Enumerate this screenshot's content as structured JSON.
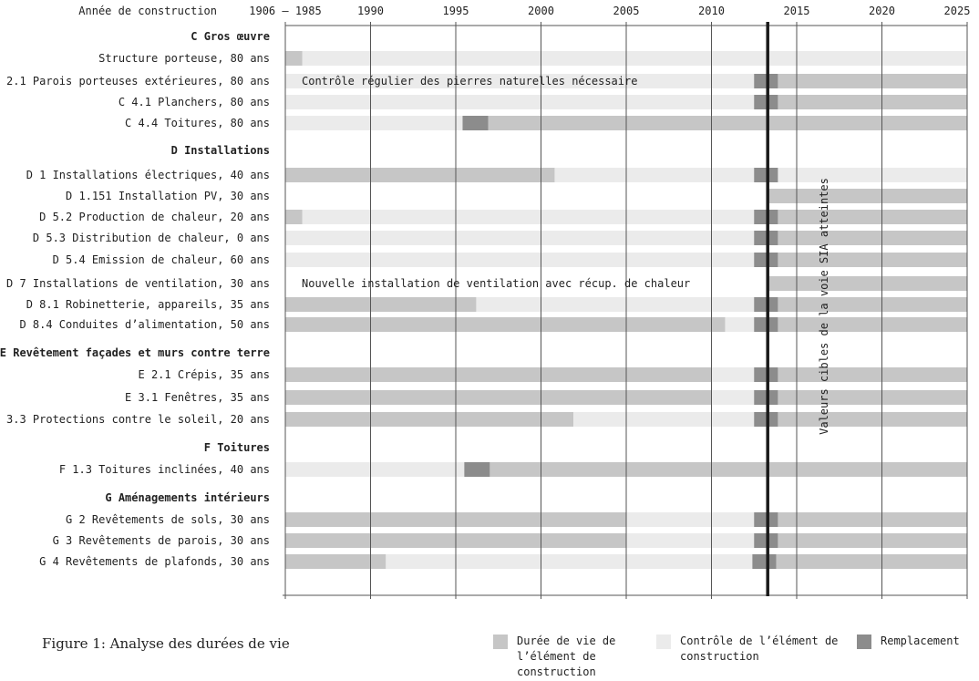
{
  "colors": {
    "lifetime": "#c6c6c6",
    "control": "#ebebeb",
    "replacement": "#8c8c8c",
    "grid": "#555555",
    "marker": "#1a1a1a"
  },
  "figure_caption": "Figure 1: Analyse des durées de vie",
  "legend": [
    {
      "label": "Durée de vie de l’élément de construction",
      "color_key": "lifetime"
    },
    {
      "label": "Contrôle de l’élément de construction",
      "color_key": "control"
    },
    {
      "label": "Remplacement",
      "color_key": "replacement"
    }
  ],
  "chart_data": {
    "type": "gantt",
    "x_header": "Année de construction",
    "xlim": [
      1985,
      2025
    ],
    "x_ticks": [
      {
        "value": 1985,
        "label": "1906 – 1985"
      },
      {
        "value": 1990,
        "label": "1990"
      },
      {
        "value": 1995,
        "label": "1995"
      },
      {
        "value": 2000,
        "label": "2000"
      },
      {
        "value": 2005,
        "label": "2005"
      },
      {
        "value": 2010,
        "label": "2010"
      },
      {
        "value": 2015,
        "label": "2015"
      },
      {
        "value": 2020,
        "label": "2020"
      },
      {
        "value": 2025,
        "label": "2025"
      }
    ],
    "reference_line": {
      "x": 2013.3,
      "label": "Valeurs cibles de la voie SIA atteintes"
    },
    "rows": [
      {
        "kind": "section",
        "label": "C Gros œuvre"
      },
      {
        "kind": "item",
        "label": "Structure porteuse, 80 ans",
        "segments": [
          {
            "type": "lifetime",
            "start": 1985,
            "end": 1986.0
          },
          {
            "type": "control",
            "start": 1986.0,
            "end": 2025
          }
        ]
      },
      {
        "kind": "item",
        "label": "C 2.1 Parois porteuses extérieures, 80 ans",
        "annotation": "Contrôle régulier des pierres naturelles nécessaire",
        "segments": [
          {
            "type": "control",
            "start": 1985,
            "end": 2012.5
          },
          {
            "type": "replacement",
            "start": 2012.5,
            "end": 2013.9
          },
          {
            "type": "lifetime",
            "start": 2013.9,
            "end": 2025
          }
        ]
      },
      {
        "kind": "item",
        "label": "C 4.1 Planchers, 80 ans",
        "segments": [
          {
            "type": "control",
            "start": 1985,
            "end": 2012.5
          },
          {
            "type": "replacement",
            "start": 2012.5,
            "end": 2013.9
          },
          {
            "type": "lifetime",
            "start": 2013.9,
            "end": 2025
          }
        ]
      },
      {
        "kind": "item",
        "label": "C 4.4 Toitures, 80 ans",
        "segments": [
          {
            "type": "control",
            "start": 1985,
            "end": 1995.4
          },
          {
            "type": "replacement",
            "start": 1995.4,
            "end": 1996.9
          },
          {
            "type": "lifetime",
            "start": 1996.9,
            "end": 2025
          }
        ]
      },
      {
        "kind": "section",
        "label": "D Installations"
      },
      {
        "kind": "item",
        "label": "D 1 Installations électriques, 40 ans",
        "segments": [
          {
            "type": "lifetime",
            "start": 1985,
            "end": 2000.8
          },
          {
            "type": "control",
            "start": 2000.8,
            "end": 2012.5
          },
          {
            "type": "replacement",
            "start": 2012.5,
            "end": 2013.9
          },
          {
            "type": "control",
            "start": 2013.9,
            "end": 2025
          }
        ]
      },
      {
        "kind": "item",
        "label": "D 1.151 Installation PV, 30 ans",
        "segments": [
          {
            "type": "lifetime",
            "start": 2013.3,
            "end": 2025
          }
        ]
      },
      {
        "kind": "item",
        "label": "D 5.2 Production de chaleur, 20 ans",
        "segments": [
          {
            "type": "lifetime",
            "start": 1985,
            "end": 1986.0
          },
          {
            "type": "control",
            "start": 1986.0,
            "end": 2012.5
          },
          {
            "type": "replacement",
            "start": 2012.5,
            "end": 2013.9
          },
          {
            "type": "lifetime",
            "start": 2013.9,
            "end": 2025
          }
        ]
      },
      {
        "kind": "item",
        "label": "D 5.3 Distribution de chaleur, 0 ans",
        "segments": [
          {
            "type": "control",
            "start": 1985,
            "end": 2012.5
          },
          {
            "type": "replacement",
            "start": 2012.5,
            "end": 2013.9
          },
          {
            "type": "lifetime",
            "start": 2013.9,
            "end": 2025
          }
        ]
      },
      {
        "kind": "item",
        "label": "D 5.4 Emission de chaleur, 60 ans",
        "segments": [
          {
            "type": "control",
            "start": 1985,
            "end": 2012.5
          },
          {
            "type": "replacement",
            "start": 2012.5,
            "end": 2013.9
          },
          {
            "type": "lifetime",
            "start": 2013.9,
            "end": 2025
          }
        ]
      },
      {
        "kind": "item",
        "label": "D 7 Installations de ventilation, 30 ans",
        "annotation": "Nouvelle installation de ventilation avec récup. de chaleur",
        "segments": [
          {
            "type": "lifetime",
            "start": 2013.3,
            "end": 2025
          }
        ]
      },
      {
        "kind": "item",
        "label": "D 8.1 Robinetterie, appareils, 35 ans",
        "segments": [
          {
            "type": "lifetime",
            "start": 1985,
            "end": 1996.2
          },
          {
            "type": "control",
            "start": 1996.2,
            "end": 2012.5
          },
          {
            "type": "replacement",
            "start": 2012.5,
            "end": 2013.9
          },
          {
            "type": "lifetime",
            "start": 2013.9,
            "end": 2025
          }
        ]
      },
      {
        "kind": "item",
        "label": "D 8.4 Conduites d’alimentation, 50 ans",
        "segments": [
          {
            "type": "lifetime",
            "start": 1985,
            "end": 2010.8
          },
          {
            "type": "control",
            "start": 2010.8,
            "end": 2012.5
          },
          {
            "type": "replacement",
            "start": 2012.5,
            "end": 2013.9
          },
          {
            "type": "lifetime",
            "start": 2013.9,
            "end": 2025
          }
        ]
      },
      {
        "kind": "section",
        "label": "E Revêtement façades et murs contre terre"
      },
      {
        "kind": "item",
        "label": "E 2.1 Crépis, 35 ans",
        "segments": [
          {
            "type": "lifetime",
            "start": 1985,
            "end": 2010.0
          },
          {
            "type": "control",
            "start": 2010.0,
            "end": 2012.5
          },
          {
            "type": "replacement",
            "start": 2012.5,
            "end": 2013.9
          },
          {
            "type": "lifetime",
            "start": 2013.9,
            "end": 2025
          }
        ]
      },
      {
        "kind": "item",
        "label": "E 3.1 Fenêtres, 35 ans",
        "segments": [
          {
            "type": "lifetime",
            "start": 1985,
            "end": 2010.0
          },
          {
            "type": "control",
            "start": 2010.0,
            "end": 2012.5
          },
          {
            "type": "replacement",
            "start": 2012.5,
            "end": 2013.9
          },
          {
            "type": "lifetime",
            "start": 2013.9,
            "end": 2025
          }
        ]
      },
      {
        "kind": "item",
        "label": "E 3.3 Protections contre le soleil, 20 ans",
        "segments": [
          {
            "type": "lifetime",
            "start": 1985,
            "end": 2001.9
          },
          {
            "type": "control",
            "start": 2001.9,
            "end": 2012.5
          },
          {
            "type": "replacement",
            "start": 2012.5,
            "end": 2013.9
          },
          {
            "type": "lifetime",
            "start": 2013.9,
            "end": 2025
          }
        ]
      },
      {
        "kind": "section",
        "label": "F Toitures"
      },
      {
        "kind": "item",
        "label": "F 1.3 Toitures inclinées, 40 ans",
        "segments": [
          {
            "type": "control",
            "start": 1985,
            "end": 1995.5
          },
          {
            "type": "replacement",
            "start": 1995.5,
            "end": 1997.0
          },
          {
            "type": "lifetime",
            "start": 1997.0,
            "end": 2025
          }
        ]
      },
      {
        "kind": "section",
        "label": "G Aménagements intérieurs"
      },
      {
        "kind": "item",
        "label": "G 2 Revêtements de sols, 30 ans",
        "segments": [
          {
            "type": "lifetime",
            "start": 1985,
            "end": 2005.0
          },
          {
            "type": "control",
            "start": 2005.0,
            "end": 2012.5
          },
          {
            "type": "replacement",
            "start": 2012.5,
            "end": 2013.9
          },
          {
            "type": "lifetime",
            "start": 2013.9,
            "end": 2025
          }
        ]
      },
      {
        "kind": "item",
        "label": "G 3 Revêtements de parois, 30 ans",
        "segments": [
          {
            "type": "lifetime",
            "start": 1985,
            "end": 2005.0
          },
          {
            "type": "control",
            "start": 2005.0,
            "end": 2012.5
          },
          {
            "type": "replacement",
            "start": 2012.5,
            "end": 2013.9
          },
          {
            "type": "lifetime",
            "start": 2013.9,
            "end": 2025
          }
        ]
      },
      {
        "kind": "item",
        "label": "G 4 Revêtements de plafonds, 30 ans",
        "segments": [
          {
            "type": "lifetime",
            "start": 1985,
            "end": 1990.9
          },
          {
            "type": "control",
            "start": 1990.9,
            "end": 2012.4
          },
          {
            "type": "replacement",
            "start": 2012.4,
            "end": 2013.8
          },
          {
            "type": "lifetime",
            "start": 2013.8,
            "end": 2025
          }
        ]
      }
    ]
  }
}
